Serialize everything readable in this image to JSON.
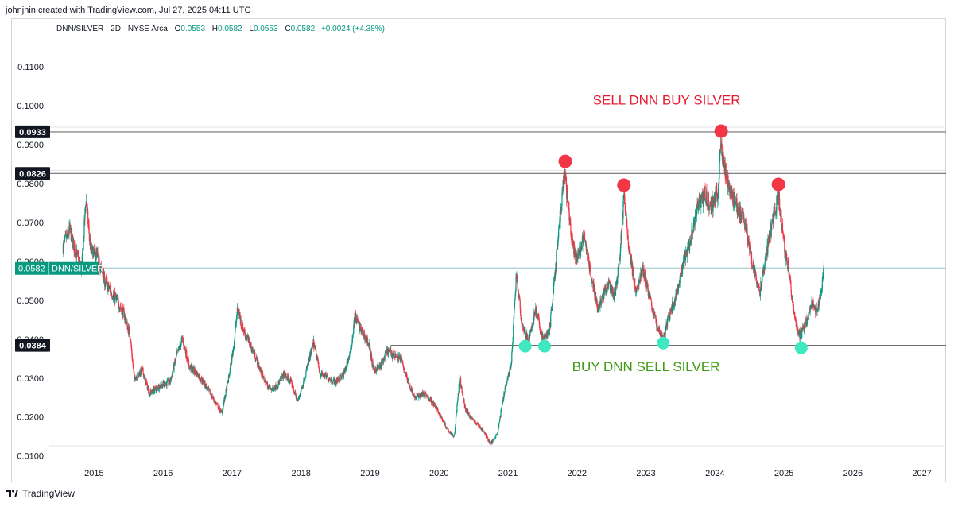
{
  "header": {
    "text": "johnjhin created with TradingView.com, Jul 27, 2025 04:11 UTC"
  },
  "legend": {
    "symbol": "DNN/SILVER · 2D · NYSE Arca",
    "o_label": "O",
    "o_value": "0.0553",
    "h_label": "H",
    "h_value": "0.0582",
    "l_label": "L",
    "l_value": "0.0553",
    "c_label": "C",
    "c_value": "0.0582",
    "change": "+0.0024 (+4.38%)"
  },
  "footer": {
    "brand": "TradingView"
  },
  "colors": {
    "up": "#089981",
    "down": "#f23645",
    "sell": "#e8192c",
    "buy": "#3c9b10",
    "dot_sell": "#f23645",
    "dot_buy": "#3ee8c0"
  },
  "chart_data": {
    "type": "line",
    "ylim": [
      0.0083,
      0.1178
    ],
    "xlim": [
      2014.35,
      2027.35
    ],
    "x_ticks": [
      "2015",
      "2016",
      "2017",
      "2018",
      "2019",
      "2020",
      "2021",
      "2022",
      "2023",
      "2024",
      "2025",
      "2026",
      "2027"
    ],
    "y_ticks": [
      "0.1100",
      "0.1000",
      "0.0900",
      "0.0800",
      "0.0700",
      "0.0600",
      "0.0500",
      "0.0400",
      "0.0300",
      "0.0200",
      "0.0100"
    ],
    "horizontal_lines": [
      {
        "value": 0.0933,
        "label": "0.0933",
        "x_start": 2014.35
      },
      {
        "value": 0.0826,
        "label": "0.0826",
        "x_start": 2014.35
      },
      {
        "value": 0.0384,
        "label": "0.0384",
        "x_start": 2019.3
      }
    ],
    "last_price": {
      "value": 0.0582,
      "label": "0.0582",
      "name": "DNN/SILVER"
    },
    "annotations": [
      {
        "text": "SELL DNN BUY SILVER",
        "x": 2023.3,
        "y": 0.1003,
        "color": "sell"
      },
      {
        "text": "BUY DNN SELL SILVER",
        "x": 2023.0,
        "y": 0.0318,
        "color": "buy"
      }
    ],
    "sell_points": [
      {
        "x": 2021.83,
        "y": 0.0857
      },
      {
        "x": 2022.68,
        "y": 0.0796
      },
      {
        "x": 2024.09,
        "y": 0.0935
      },
      {
        "x": 2024.92,
        "y": 0.0798
      }
    ],
    "buy_points": [
      {
        "x": 2021.25,
        "y": 0.0382
      },
      {
        "x": 2021.53,
        "y": 0.0382
      },
      {
        "x": 2023.25,
        "y": 0.039
      },
      {
        "x": 2025.25,
        "y": 0.0378
      }
    ],
    "price_path": [
      [
        2014.55,
        0.064
      ],
      [
        2014.65,
        0.068
      ],
      [
        2014.72,
        0.063
      ],
      [
        2014.82,
        0.058
      ],
      [
        2014.88,
        0.076
      ],
      [
        2014.95,
        0.063
      ],
      [
        2015.05,
        0.061
      ],
      [
        2015.15,
        0.055
      ],
      [
        2015.25,
        0.052
      ],
      [
        2015.33,
        0.05
      ],
      [
        2015.42,
        0.047
      ],
      [
        2015.52,
        0.041
      ],
      [
        2015.58,
        0.03
      ],
      [
        2015.7,
        0.032
      ],
      [
        2015.8,
        0.026
      ],
      [
        2015.95,
        0.028
      ],
      [
        2016.1,
        0.029
      ],
      [
        2016.2,
        0.036
      ],
      [
        2016.28,
        0.04
      ],
      [
        2016.38,
        0.033
      ],
      [
        2016.5,
        0.031
      ],
      [
        2016.62,
        0.028
      ],
      [
        2016.75,
        0.024
      ],
      [
        2016.85,
        0.021
      ],
      [
        2016.95,
        0.03
      ],
      [
        2017.02,
        0.038
      ],
      [
        2017.08,
        0.048
      ],
      [
        2017.15,
        0.043
      ],
      [
        2017.25,
        0.039
      ],
      [
        2017.35,
        0.035
      ],
      [
        2017.45,
        0.03
      ],
      [
        2017.55,
        0.027
      ],
      [
        2017.65,
        0.028
      ],
      [
        2017.75,
        0.031
      ],
      [
        2017.85,
        0.029
      ],
      [
        2017.95,
        0.024
      ],
      [
        2018.05,
        0.03
      ],
      [
        2018.18,
        0.039
      ],
      [
        2018.28,
        0.031
      ],
      [
        2018.4,
        0.03
      ],
      [
        2018.5,
        0.029
      ],
      [
        2018.62,
        0.031
      ],
      [
        2018.72,
        0.037
      ],
      [
        2018.78,
        0.046
      ],
      [
        2018.88,
        0.042
      ],
      [
        2018.98,
        0.039
      ],
      [
        2019.05,
        0.032
      ],
      [
        2019.15,
        0.033
      ],
      [
        2019.25,
        0.037
      ],
      [
        2019.35,
        0.036
      ],
      [
        2019.45,
        0.035
      ],
      [
        2019.55,
        0.029
      ],
      [
        2019.65,
        0.025
      ],
      [
        2019.78,
        0.026
      ],
      [
        2019.9,
        0.024
      ],
      [
        2020.0,
        0.021
      ],
      [
        2020.12,
        0.017
      ],
      [
        2020.22,
        0.015
      ],
      [
        2020.3,
        0.03
      ],
      [
        2020.38,
        0.022
      ],
      [
        2020.5,
        0.019
      ],
      [
        2020.62,
        0.017
      ],
      [
        2020.75,
        0.013
      ],
      [
        2020.85,
        0.016
      ],
      [
        2020.95,
        0.027
      ],
      [
        2021.05,
        0.034
      ],
      [
        2021.12,
        0.057
      ],
      [
        2021.2,
        0.044
      ],
      [
        2021.3,
        0.039
      ],
      [
        2021.4,
        0.048
      ],
      [
        2021.5,
        0.04
      ],
      [
        2021.6,
        0.042
      ],
      [
        2021.68,
        0.057
      ],
      [
        2021.75,
        0.07
      ],
      [
        2021.82,
        0.083
      ],
      [
        2021.9,
        0.069
      ],
      [
        2021.98,
        0.06
      ],
      [
        2022.1,
        0.066
      ],
      [
        2022.2,
        0.057
      ],
      [
        2022.3,
        0.048
      ],
      [
        2022.45,
        0.054
      ],
      [
        2022.55,
        0.051
      ],
      [
        2022.62,
        0.061
      ],
      [
        2022.68,
        0.077
      ],
      [
        2022.75,
        0.064
      ],
      [
        2022.85,
        0.052
      ],
      [
        2022.95,
        0.058
      ],
      [
        2023.05,
        0.051
      ],
      [
        2023.15,
        0.044
      ],
      [
        2023.25,
        0.04
      ],
      [
        2023.35,
        0.047
      ],
      [
        2023.45,
        0.052
      ],
      [
        2023.55,
        0.06
      ],
      [
        2023.65,
        0.066
      ],
      [
        2023.75,
        0.075
      ],
      [
        2023.85,
        0.077
      ],
      [
        2023.95,
        0.074
      ],
      [
        2024.05,
        0.078
      ],
      [
        2024.08,
        0.091
      ],
      [
        2024.13,
        0.085
      ],
      [
        2024.2,
        0.079
      ],
      [
        2024.3,
        0.075
      ],
      [
        2024.45,
        0.069
      ],
      [
        2024.55,
        0.059
      ],
      [
        2024.65,
        0.052
      ],
      [
        2024.75,
        0.063
      ],
      [
        2024.85,
        0.071
      ],
      [
        2024.92,
        0.077
      ],
      [
        2025.0,
        0.065
      ],
      [
        2025.08,
        0.056
      ],
      [
        2025.15,
        0.046
      ],
      [
        2025.22,
        0.041
      ],
      [
        2025.3,
        0.043
      ],
      [
        2025.4,
        0.049
      ],
      [
        2025.48,
        0.047
      ],
      [
        2025.55,
        0.054
      ],
      [
        2025.58,
        0.0582
      ]
    ]
  }
}
